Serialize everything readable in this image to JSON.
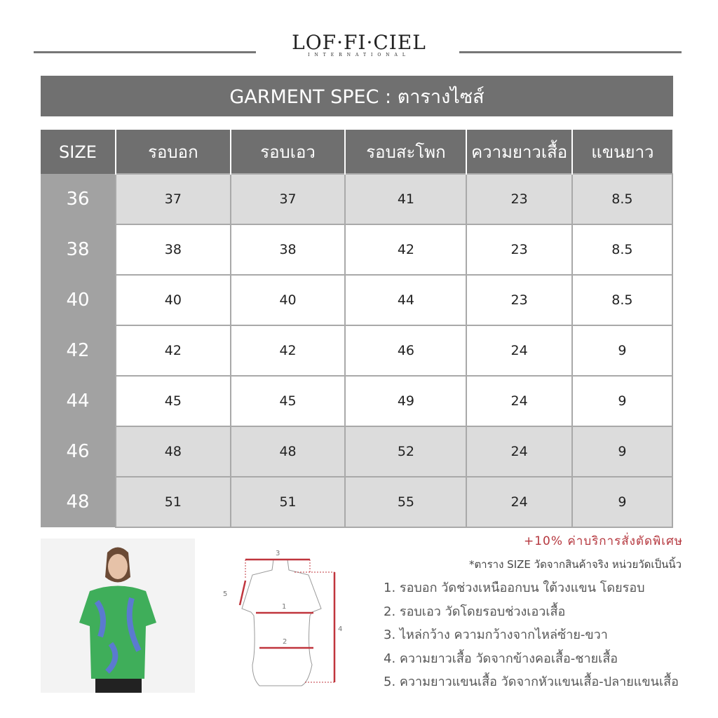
{
  "brand": {
    "name": "LOF·FI·CIEL",
    "tagline": "INTERNATIONAL"
  },
  "title": "GARMENT SPEC : ตารางไซส์",
  "table": {
    "headers": [
      "SIZE",
      "รอบอก",
      "รอบเอว",
      "รอบสะโพก",
      "ความยาวเสื้อ",
      "แขนยาว"
    ],
    "rows": [
      [
        "36",
        "37",
        "37",
        "41",
        "23",
        "8.5"
      ],
      [
        "38",
        "38",
        "38",
        "42",
        "23",
        "8.5"
      ],
      [
        "40",
        "40",
        "40",
        "44",
        "23",
        "8.5"
      ],
      [
        "42",
        "42",
        "42",
        "46",
        "24",
        "9"
      ],
      [
        "44",
        "45",
        "45",
        "49",
        "24",
        "9"
      ],
      [
        "46",
        "48",
        "48",
        "52",
        "24",
        "9"
      ],
      [
        "48",
        "51",
        "51",
        "55",
        "24",
        "9"
      ]
    ]
  },
  "surcharge": "+10% ค่าบริการสั่งตัดพิเศษ",
  "note": "*ตาราง SIZE วัดจากสินค้าจริง หน่วยวัดเป็นนิ้ว",
  "instructions": [
    "1. รอบอก วัดช่วงเหนืออกบน ใต้วงแขน โดยรอบ",
    "2. รอบเอว วัดโดยรอบช่วงเอวเสื้อ",
    "3. ไหล่กว้าง ความกว้างจากไหล่ซ้าย-ขวา",
    "4. ความยาวเสื้อ วัดจากข้างคอเสื้อ-ชายเสื้อ",
    "5. ความยาวแขนเสื้อ วัดจากหัวแขนเสื้อ-ปลายแขนเสื้อ"
  ],
  "diagram_labels": [
    "1",
    "2",
    "3",
    "4",
    "5"
  ],
  "colors": {
    "header": "#6f6f6f",
    "size_col": "#a2a2a2",
    "accent": "#b5373e",
    "shaded_row": "#dcdcdc"
  }
}
